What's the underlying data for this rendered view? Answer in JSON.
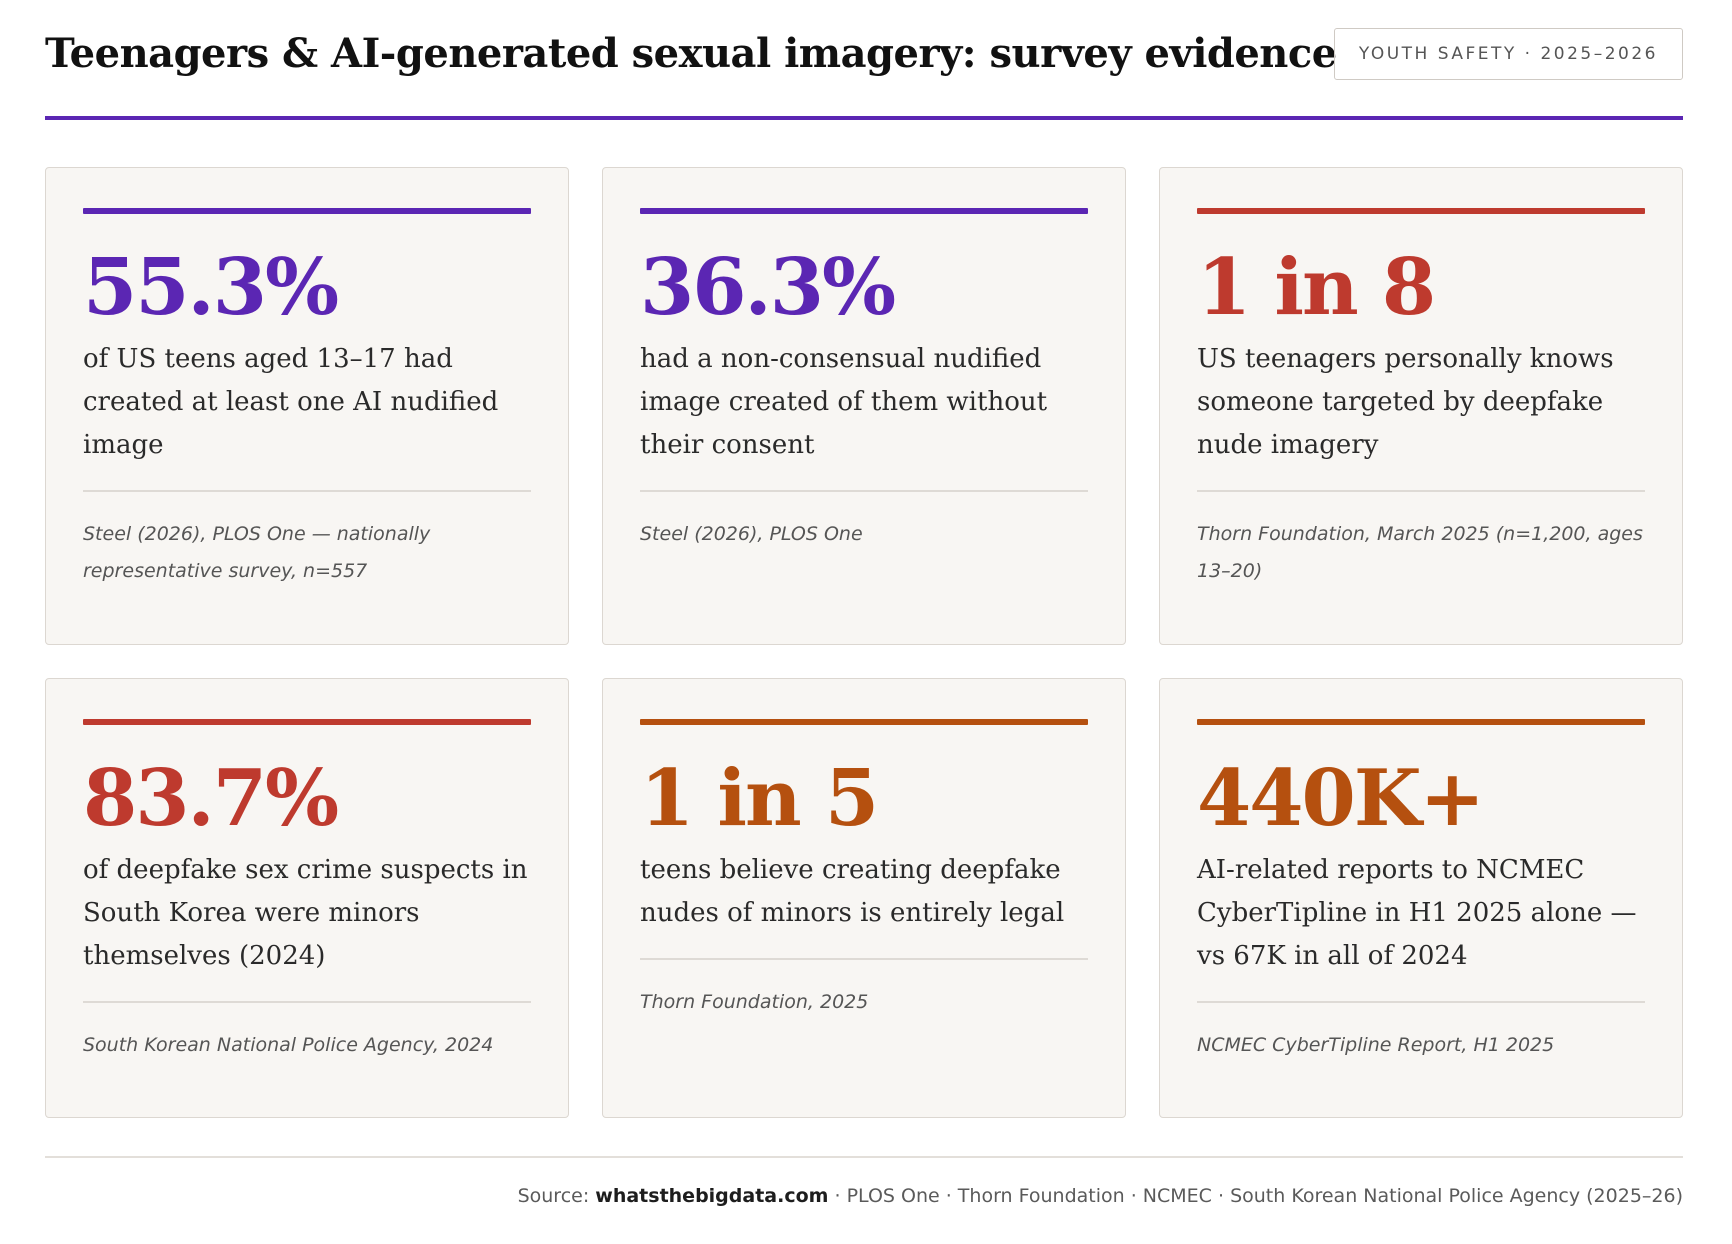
{
  "header": {
    "title": "Teenagers & AI-generated sexual imagery: survey evidence",
    "badge": "YOUTH SAFETY · 2025–2026"
  },
  "colors": {
    "purple": "#5b26b3",
    "red": "#be3a2e",
    "orange": "#b5500f"
  },
  "cards": [
    {
      "value": "55.3%",
      "description": "of US teens aged 13–17 had created at least one AI nudified image",
      "source": "Steel (2026), PLOS One — nationally representative survey, n=557",
      "accent": "#5b26b3"
    },
    {
      "value": "36.3%",
      "description": "had a non-consensual nudified image created of them without their consent",
      "source": "Steel (2026), PLOS One",
      "accent": "#5b26b3"
    },
    {
      "value": "1 in 8",
      "description": "US teenagers personally knows someone targeted by deepfake nude imagery",
      "source": "Thorn Foundation, March 2025 (n=1,200, ages 13–20)",
      "accent": "#be3a2e"
    },
    {
      "value": "83.7%",
      "description": "of deepfake sex crime suspects in South Korea were minors themselves (2024)",
      "source": "South Korean National Police Agency, 2024",
      "accent": "#be3a2e"
    },
    {
      "value": "1 in 5",
      "description": "teens believe creating deepfake nudes of minors is entirely legal",
      "source": "Thorn Foundation, 2025",
      "accent": "#b5500f"
    },
    {
      "value": "440K+",
      "description": "AI-related reports to NCMEC CyberTipline in H1 2025 alone — vs 67K in all of 2024",
      "source": "NCMEC CyberTipline Report, H1 2025",
      "accent": "#b5500f"
    }
  ],
  "footer": {
    "prefix": "Source: ",
    "site": "whatsthebigdata.com",
    "rest": " · PLOS One · Thorn Foundation · NCMEC · South Korean National Police Agency (2025–26)"
  }
}
